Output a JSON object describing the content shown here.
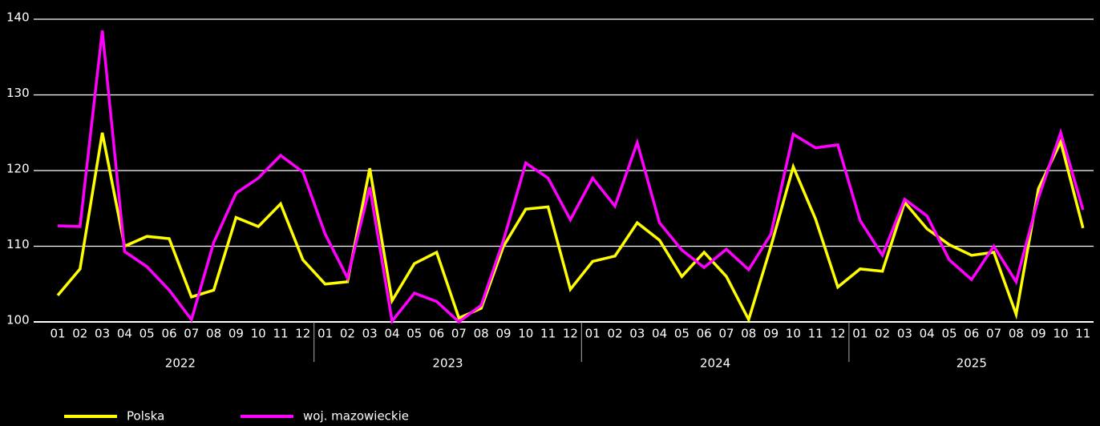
{
  "chart_data": {
    "type": "line",
    "categories": [
      "01",
      "02",
      "03",
      "04",
      "05",
      "06",
      "07",
      "08",
      "09",
      "10",
      "11",
      "12",
      "01",
      "02",
      "03",
      "04",
      "05",
      "06",
      "07",
      "08",
      "09",
      "10",
      "11",
      "12",
      "01",
      "02",
      "03",
      "04",
      "05",
      "06",
      "07",
      "08",
      "09",
      "10",
      "11",
      "12",
      "01",
      "02",
      "03",
      "04",
      "05",
      "06",
      "07",
      "08",
      "09",
      "10",
      "11"
    ],
    "year_labels": [
      "2022",
      "2023",
      "2024",
      "2025"
    ],
    "series": [
      {
        "name": "Polska",
        "color": "#ffff00",
        "values": [
          103.5,
          107,
          125,
          110,
          111.3,
          111,
          103.3,
          104.2,
          113.8,
          112.6,
          115.6,
          108.2,
          105,
          105.3,
          120.3,
          102.8,
          107.7,
          109.2,
          100.5,
          101.8,
          110,
          114.9,
          115.2,
          104.3,
          108,
          108.7,
          113.1,
          110.8,
          106,
          109.2,
          106,
          100.3,
          110,
          120.5,
          113.6,
          104.6,
          107,
          106.7,
          115.8,
          112.3,
          110.2,
          108.8,
          109.2,
          101,
          117.6,
          123.8,
          112.4
        ]
      },
      {
        "name": "woj. mazowieckie",
        "color": "#ff00ff",
        "values": [
          112.7,
          112.6,
          138.5,
          109.3,
          107.3,
          104.2,
          100.3,
          110.5,
          117,
          119,
          122,
          119.8,
          111.6,
          105.8,
          117.8,
          100.1,
          103.8,
          102.7,
          100,
          102.2,
          110.8,
          121,
          119,
          113.5,
          119,
          115.3,
          123.7,
          113.1,
          109.5,
          107.2,
          109.6,
          106.9,
          111.6,
          124.8,
          123,
          123.4,
          113.4,
          108.8,
          116.2,
          114,
          108.2,
          105.6,
          110,
          105.3,
          116.4,
          125,
          114.8
        ]
      }
    ],
    "ylim": [
      100,
      140
    ],
    "yticks": [
      100,
      110,
      120,
      130,
      140
    ],
    "grid": true,
    "legend": "bottom-left"
  }
}
